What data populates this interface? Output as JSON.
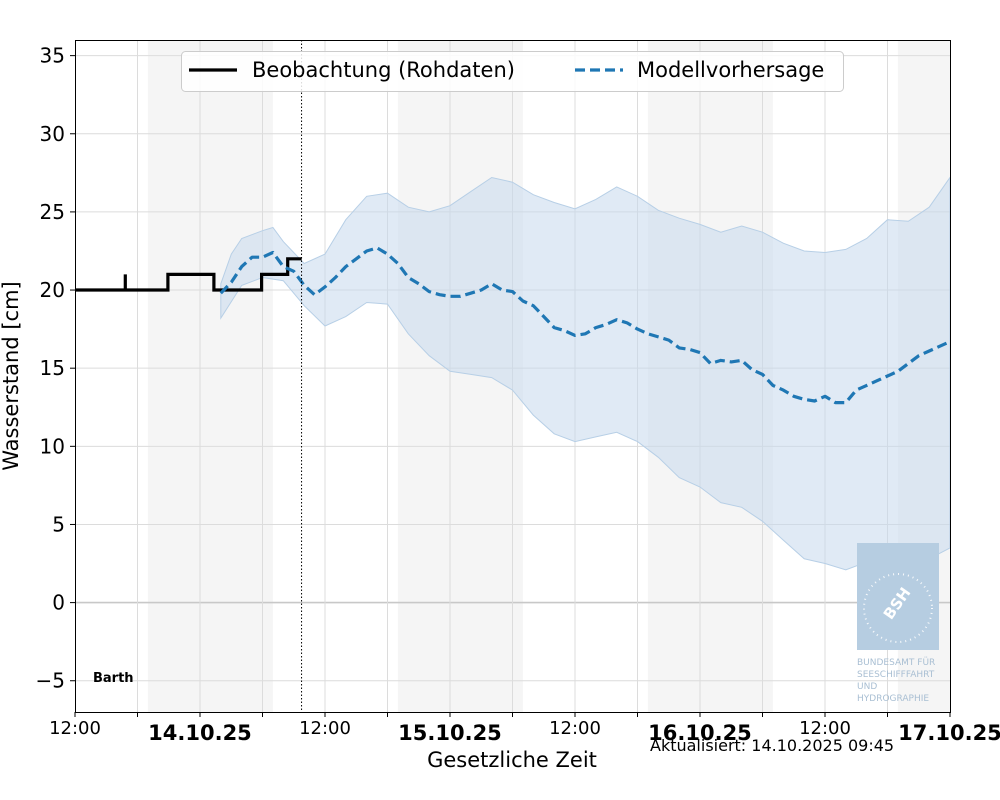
{
  "chart_data": {
    "type": "line",
    "xlabel": "Gesetzliche Zeit",
    "ylabel": "Wasserstand [cm]",
    "station": "Barth",
    "updated": "Aktualisiert: 14.10.2025 09:45",
    "ylim": [
      -7,
      36
    ],
    "xlim": [
      "2025-10-13T12:00",
      "2025-10-17T00:00"
    ],
    "yticks": [
      -5,
      0,
      5,
      10,
      15,
      20,
      25,
      30,
      35
    ],
    "ytick_labels": [
      "−5",
      "0",
      "5",
      "10",
      "15",
      "20",
      "25",
      "30",
      "35"
    ],
    "xtick_labels": [
      {
        "t": "2025-10-13T12:00",
        "label": "12:00",
        "bold": false
      },
      {
        "t": "2025-10-14T00:00",
        "label": "14.10.25",
        "bold": true
      },
      {
        "t": "2025-10-14T12:00",
        "label": "12:00",
        "bold": false
      },
      {
        "t": "2025-10-15T00:00",
        "label": "15.10.25",
        "bold": true
      },
      {
        "t": "2025-10-15T12:00",
        "label": "12:00",
        "bold": false
      },
      {
        "t": "2025-10-16T00:00",
        "label": "16.10.25",
        "bold": true
      },
      {
        "t": "2025-10-16T12:00",
        "label": "12:00",
        "bold": false
      },
      {
        "t": "2025-10-17T00:00",
        "label": "17.10.25",
        "bold": true
      }
    ],
    "now": "2025-10-14T09:45",
    "grid": true,
    "legend_position": "top-center",
    "night_bands": [
      [
        "2025-10-13T19:00",
        "2025-10-14T07:00"
      ],
      [
        "2025-10-14T19:00",
        "2025-10-15T07:00"
      ],
      [
        "2025-10-15T19:00",
        "2025-10-16T07:00"
      ],
      [
        "2025-10-16T19:00",
        "2025-10-17T00:00"
      ]
    ],
    "series": [
      {
        "name": "Beobachtung (Rohdaten)",
        "style": "solid",
        "color": "#000000",
        "steps": [
          [
            "2025-10-13T12:00",
            20
          ],
          [
            "2025-10-13T16:50",
            20
          ],
          [
            "2025-10-13T16:50",
            21
          ],
          [
            "2025-10-13T16:50",
            20
          ],
          [
            "2025-10-13T20:55",
            20
          ],
          [
            "2025-10-13T20:55",
            21
          ],
          [
            "2025-10-14T01:20",
            21
          ],
          [
            "2025-10-14T01:20",
            20
          ],
          [
            "2025-10-14T05:55",
            20
          ],
          [
            "2025-10-14T05:55",
            21
          ],
          [
            "2025-10-14T08:25",
            21
          ],
          [
            "2025-10-14T08:25",
            22
          ],
          [
            "2025-10-14T09:45",
            22
          ]
        ]
      },
      {
        "name": "Modellvorhersage",
        "style": "dashed",
        "color": "#1f77b4",
        "points": [
          [
            "2025-10-14T02:00",
            19.8
          ],
          [
            "2025-10-14T03:00",
            20.5
          ],
          [
            "2025-10-14T04:00",
            21.5
          ],
          [
            "2025-10-14T05:00",
            22.1
          ],
          [
            "2025-10-14T06:00",
            22.1
          ],
          [
            "2025-10-14T07:00",
            22.4
          ],
          [
            "2025-10-14T08:00",
            21.5
          ],
          [
            "2025-10-14T09:00",
            21.2
          ],
          [
            "2025-10-14T10:00",
            20.3
          ],
          [
            "2025-10-14T11:00",
            19.7
          ],
          [
            "2025-10-14T12:00",
            20.2
          ],
          [
            "2025-10-14T13:00",
            20.8
          ],
          [
            "2025-10-14T14:00",
            21.5
          ],
          [
            "2025-10-14T15:00",
            22.0
          ],
          [
            "2025-10-14T16:00",
            22.5
          ],
          [
            "2025-10-14T17:00",
            22.7
          ],
          [
            "2025-10-14T18:00",
            22.3
          ],
          [
            "2025-10-14T19:00",
            21.7
          ],
          [
            "2025-10-14T20:00",
            20.8
          ],
          [
            "2025-10-14T21:00",
            20.4
          ],
          [
            "2025-10-14T22:00",
            19.9
          ],
          [
            "2025-10-14T23:00",
            19.7
          ],
          [
            "2025-10-15T00:00",
            19.6
          ],
          [
            "2025-10-15T01:00",
            19.6
          ],
          [
            "2025-10-15T02:00",
            19.8
          ],
          [
            "2025-10-15T03:00",
            20.0
          ],
          [
            "2025-10-15T04:00",
            20.4
          ],
          [
            "2025-10-15T05:00",
            20.0
          ],
          [
            "2025-10-15T06:00",
            19.9
          ],
          [
            "2025-10-15T07:00",
            19.3
          ],
          [
            "2025-10-15T08:00",
            19.0
          ],
          [
            "2025-10-15T09:00",
            18.3
          ],
          [
            "2025-10-15T10:00",
            17.6
          ],
          [
            "2025-10-15T11:00",
            17.4
          ],
          [
            "2025-10-15T12:00",
            17.1
          ],
          [
            "2025-10-15T13:00",
            17.2
          ],
          [
            "2025-10-15T14:00",
            17.6
          ],
          [
            "2025-10-15T15:00",
            17.8
          ],
          [
            "2025-10-15T16:00",
            18.1
          ],
          [
            "2025-10-15T17:00",
            17.9
          ],
          [
            "2025-10-15T18:00",
            17.5
          ],
          [
            "2025-10-15T19:00",
            17.2
          ],
          [
            "2025-10-15T20:00",
            17.0
          ],
          [
            "2025-10-15T21:00",
            16.8
          ],
          [
            "2025-10-15T22:00",
            16.3
          ],
          [
            "2025-10-15T23:00",
            16.2
          ],
          [
            "2025-10-16T00:00",
            16.0
          ],
          [
            "2025-10-16T01:00",
            15.3
          ],
          [
            "2025-10-16T02:00",
            15.5
          ],
          [
            "2025-10-16T03:00",
            15.4
          ],
          [
            "2025-10-16T04:00",
            15.5
          ],
          [
            "2025-10-16T05:00",
            14.9
          ],
          [
            "2025-10-16T06:00",
            14.6
          ],
          [
            "2025-10-16T07:00",
            13.9
          ],
          [
            "2025-10-16T08:00",
            13.6
          ],
          [
            "2025-10-16T09:00",
            13.2
          ],
          [
            "2025-10-16T10:00",
            13.0
          ],
          [
            "2025-10-16T11:00",
            12.9
          ],
          [
            "2025-10-16T12:00",
            13.2
          ],
          [
            "2025-10-16T13:00",
            12.8
          ],
          [
            "2025-10-16T14:00",
            12.8
          ],
          [
            "2025-10-16T15:00",
            13.6
          ],
          [
            "2025-10-16T16:00",
            13.9
          ],
          [
            "2025-10-16T17:00",
            14.2
          ],
          [
            "2025-10-16T18:00",
            14.5
          ],
          [
            "2025-10-16T19:00",
            14.8
          ],
          [
            "2025-10-16T20:00",
            15.3
          ],
          [
            "2025-10-16T21:00",
            15.8
          ],
          [
            "2025-10-16T22:00",
            16.1
          ],
          [
            "2025-10-16T23:00",
            16.4
          ],
          [
            "2025-10-17T00:00",
            16.7
          ]
        ]
      }
    ],
    "band": {
      "color": "#c6d9ec",
      "lower": [
        [
          "2025-10-14T02:00",
          18.2
        ],
        [
          "2025-10-14T04:00",
          20.3
        ],
        [
          "2025-10-14T06:00",
          20.8
        ],
        [
          "2025-10-14T08:00",
          20.6
        ],
        [
          "2025-10-14T10:00",
          19.0
        ],
        [
          "2025-10-14T12:00",
          17.7
        ],
        [
          "2025-10-14T14:00",
          18.3
        ],
        [
          "2025-10-14T16:00",
          19.2
        ],
        [
          "2025-10-14T18:00",
          19.1
        ],
        [
          "2025-10-14T20:00",
          17.2
        ],
        [
          "2025-10-14T22:00",
          15.8
        ],
        [
          "2025-10-15T00:00",
          14.8
        ],
        [
          "2025-10-15T02:00",
          14.6
        ],
        [
          "2025-10-15T04:00",
          14.4
        ],
        [
          "2025-10-15T06:00",
          13.6
        ],
        [
          "2025-10-15T08:00",
          12.0
        ],
        [
          "2025-10-15T10:00",
          10.8
        ],
        [
          "2025-10-15T12:00",
          10.3
        ],
        [
          "2025-10-15T14:00",
          10.6
        ],
        [
          "2025-10-15T16:00",
          10.9
        ],
        [
          "2025-10-15T18:00",
          10.3
        ],
        [
          "2025-10-15T20:00",
          9.3
        ],
        [
          "2025-10-15T22:00",
          8.0
        ],
        [
          "2025-10-16T00:00",
          7.4
        ],
        [
          "2025-10-16T02:00",
          6.4
        ],
        [
          "2025-10-16T04:00",
          6.1
        ],
        [
          "2025-10-16T06:00",
          5.2
        ],
        [
          "2025-10-16T08:00",
          4.0
        ],
        [
          "2025-10-16T10:00",
          2.8
        ],
        [
          "2025-10-16T12:00",
          2.5
        ],
        [
          "2025-10-16T14:00",
          2.1
        ],
        [
          "2025-10-16T16:00",
          2.6
        ],
        [
          "2025-10-16T18:00",
          2.1
        ],
        [
          "2025-10-16T20:00",
          1.9
        ],
        [
          "2025-10-16T22:00",
          2.8
        ],
        [
          "2025-10-17T00:00",
          3.5
        ]
      ],
      "upper": [
        [
          "2025-10-14T02:00",
          20.4
        ],
        [
          "2025-10-14T03:00",
          22.3
        ],
        [
          "2025-10-14T04:00",
          23.3
        ],
        [
          "2025-10-14T06:00",
          23.8
        ],
        [
          "2025-10-14T07:00",
          24.0
        ],
        [
          "2025-10-14T08:00",
          23.1
        ],
        [
          "2025-10-14T10:00",
          21.7
        ],
        [
          "2025-10-14T12:00",
          22.3
        ],
        [
          "2025-10-14T14:00",
          24.5
        ],
        [
          "2025-10-14T16:00",
          26.0
        ],
        [
          "2025-10-14T18:00",
          26.2
        ],
        [
          "2025-10-14T20:00",
          25.3
        ],
        [
          "2025-10-14T22:00",
          25.0
        ],
        [
          "2025-10-15T00:00",
          25.4
        ],
        [
          "2025-10-15T02:00",
          26.3
        ],
        [
          "2025-10-15T04:00",
          27.2
        ],
        [
          "2025-10-15T06:00",
          26.9
        ],
        [
          "2025-10-15T08:00",
          26.1
        ],
        [
          "2025-10-15T10:00",
          25.6
        ],
        [
          "2025-10-15T12:00",
          25.2
        ],
        [
          "2025-10-15T14:00",
          25.8
        ],
        [
          "2025-10-15T16:00",
          26.6
        ],
        [
          "2025-10-15T18:00",
          26.0
        ],
        [
          "2025-10-15T20:00",
          25.1
        ],
        [
          "2025-10-15T22:00",
          24.6
        ],
        [
          "2025-10-16T00:00",
          24.2
        ],
        [
          "2025-10-16T02:00",
          23.7
        ],
        [
          "2025-10-16T04:00",
          24.1
        ],
        [
          "2025-10-16T06:00",
          23.7
        ],
        [
          "2025-10-16T08:00",
          23.0
        ],
        [
          "2025-10-16T10:00",
          22.5
        ],
        [
          "2025-10-16T12:00",
          22.4
        ],
        [
          "2025-10-16T14:00",
          22.6
        ],
        [
          "2025-10-16T16:00",
          23.3
        ],
        [
          "2025-10-16T18:00",
          24.5
        ],
        [
          "2025-10-16T20:00",
          24.4
        ],
        [
          "2025-10-16T22:00",
          25.3
        ],
        [
          "2025-10-17T00:00",
          27.2
        ]
      ]
    },
    "logo": {
      "mark": "BSH",
      "lines": [
        "BUNDESAMT FÜR",
        "SEESCHIFFFAHRT",
        "UND",
        "HYDROGRAPHIE"
      ]
    }
  }
}
